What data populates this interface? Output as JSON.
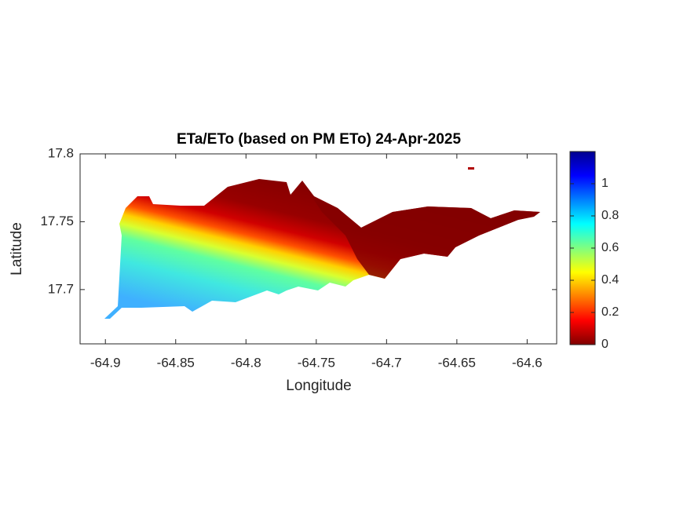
{
  "chart_data": {
    "type": "heatmap",
    "title": "ETa/ETo (based on PM ETo) 24-Apr-2025",
    "xlabel": "Longitude",
    "ylabel": "Latitude",
    "xlim": [
      -64.918,
      -64.579
    ],
    "ylim": [
      17.66,
      17.8
    ],
    "xticks": [
      -64.9,
      -64.85,
      -64.8,
      -64.75,
      -64.7,
      -64.65,
      -64.6
    ],
    "yticks": [
      17.7,
      17.75,
      17.8
    ],
    "clim": [
      0,
      1.2
    ],
    "cticks": [
      0,
      0.2,
      0.4,
      0.6,
      0.8,
      1
    ]
  }
}
